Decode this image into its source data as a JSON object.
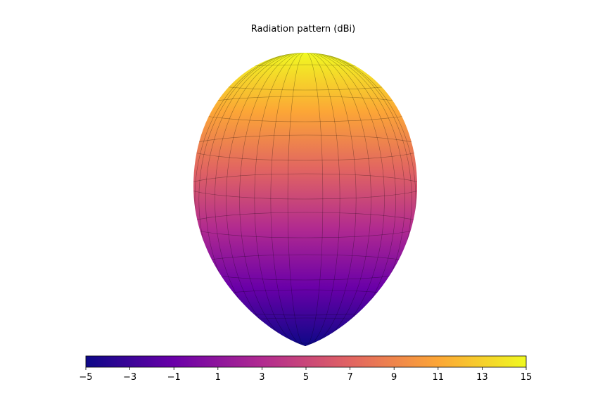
{
  "chart_data": {
    "type": "surface",
    "title": "Radiation pattern (dBi)",
    "colormap": [
      "#0d0887",
      "#6a00a8",
      "#b12a90",
      "#e16462",
      "#fca636",
      "#f0f921"
    ],
    "clim": [
      -5,
      15
    ],
    "cticks": [
      {
        "value": -5,
        "label": "−5"
      },
      {
        "value": -3,
        "label": "−3"
      },
      {
        "value": -1,
        "label": "−1"
      },
      1,
      3,
      5,
      7,
      9,
      11,
      13,
      15
    ]
  }
}
